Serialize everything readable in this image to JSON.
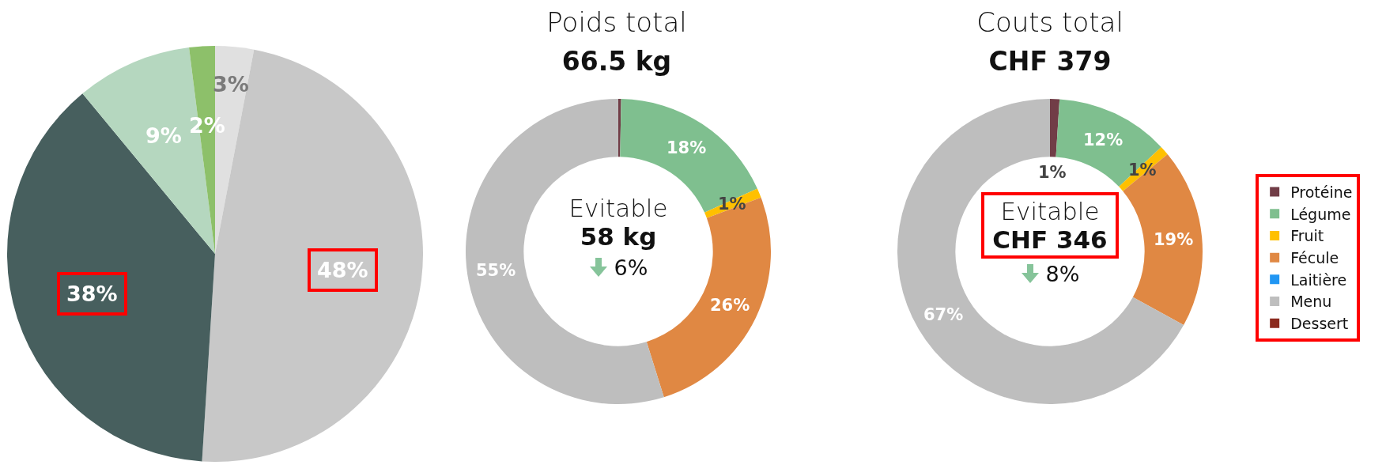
{
  "chart_data": [
    {
      "type": "pie",
      "categories": [
        null,
        null,
        null,
        null,
        null
      ],
      "values": [
        3,
        48,
        38,
        9,
        2
      ],
      "colors": [
        "#e0e0e0",
        "#c8c8c8",
        "#475f5e",
        "#b5d7bf",
        "#8dc06a"
      ],
      "value_labels": [
        "3%",
        "48%",
        "38%",
        "9%",
        "2%"
      ]
    },
    {
      "type": "donut",
      "title": "Poids total",
      "subtitle": "66.5 kg",
      "annotations": [
        "Evitable",
        "58 kg",
        "6%"
      ],
      "categories": [
        null,
        null,
        null,
        null,
        null,
        null,
        null
      ],
      "values": [
        0.3,
        18,
        1,
        26,
        0,
        55,
        0
      ],
      "colors": [
        "#713d47",
        "#7fbf8f",
        "#ffc000",
        "#e08843",
        "#2196f3",
        "#bebebe",
        "#8b2a1e"
      ],
      "value_labels": [
        null,
        "18%",
        "1%",
        "26%",
        null,
        "55%",
        null
      ]
    },
    {
      "type": "donut",
      "title": "Couts total",
      "subtitle": "CHF 379",
      "annotations": [
        "Evitable",
        "CHF 346",
        "8%"
      ],
      "categories": [
        "Protéine",
        "Légume",
        "Fruit",
        "Fécule",
        "Laitière",
        "Menu",
        "Dessert"
      ],
      "values": [
        1,
        12,
        1,
        19,
        0,
        67,
        0
      ],
      "colors": [
        "#713d47",
        "#7fbf8f",
        "#ffc000",
        "#e08843",
        "#2196f3",
        "#bebebe",
        "#8b2a1e"
      ],
      "value_labels": [
        "1%",
        "12%",
        "1%",
        "19%",
        null,
        "67%",
        null
      ],
      "legend": "right"
    }
  ]
}
